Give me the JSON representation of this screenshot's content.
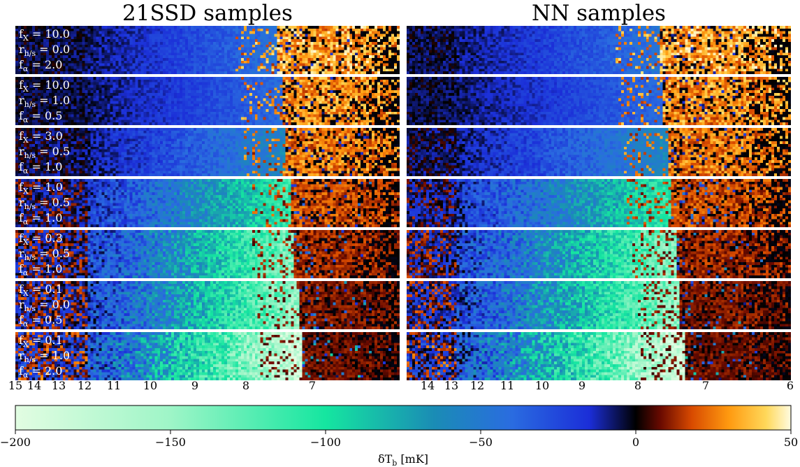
{
  "chart_data": {
    "type": "heatmap",
    "panels": [
      {
        "title": "21SSD samples",
        "x_ticks": [
          "15",
          "14",
          "13",
          "12",
          "11",
          "10",
          "9",
          "8",
          "7"
        ]
      },
      {
        "title": "NN samples",
        "x_ticks": [
          "14",
          "13",
          "12",
          "11",
          "10",
          "9",
          "8",
          "7",
          "6"
        ]
      }
    ],
    "rows": [
      {
        "fx": "10.0",
        "rhs": "0.0",
        "fa": "2.0",
        "min_dTb": -45,
        "peak": 45
      },
      {
        "fx": "10.0",
        "rhs": "1.0",
        "fa": "0.5",
        "min_dTb": -40,
        "peak": 40
      },
      {
        "fx": "3.0",
        "rhs": "0.5",
        "fa": "1.0",
        "min_dTb": -60,
        "peak": 35
      },
      {
        "fx": "1.0",
        "rhs": "0.5",
        "fa": "1.0",
        "min_dTb": -110,
        "peak": 25
      },
      {
        "fx": "0.3",
        "rhs": "0.5",
        "fa": "1.0",
        "min_dTb": -140,
        "peak": 18
      },
      {
        "fx": "0.1",
        "rhs": "0.0",
        "fa": "0.5",
        "min_dTb": -150,
        "peak": 14
      },
      {
        "fx": "0.1",
        "rhs": "1.0",
        "fa": "2.0",
        "min_dTb": -190,
        "peak": 12
      }
    ],
    "param_labels": {
      "fx": "f",
      "fx_sub": "X",
      "rhs": "r",
      "rhs_sub": "h/s",
      "fa": "f",
      "fa_sub": "α"
    },
    "colorbar": {
      "label": "δT",
      "label_sub": "b",
      "label_unit": " [mK]",
      "range": [
        -200,
        50
      ],
      "ticks": [
        "−200",
        "−150",
        "−100",
        "−50",
        "0",
        "50"
      ],
      "tick_values": [
        -200,
        -150,
        -100,
        -50,
        0,
        50
      ],
      "colormap_stops": [
        {
          "v": -200,
          "color": "#e2fde2"
        },
        {
          "v": -150,
          "color": "#9ef5c7"
        },
        {
          "v": -100,
          "color": "#15e6a0"
        },
        {
          "v": -65,
          "color": "#1a8cb5"
        },
        {
          "v": -40,
          "color": "#2a6ce0"
        },
        {
          "v": -15,
          "color": "#1b2ed8"
        },
        {
          "v": 0,
          "color": "#000000"
        },
        {
          "v": 8,
          "color": "#6a0a00"
        },
        {
          "v": 18,
          "color": "#d84a00"
        },
        {
          "v": 30,
          "color": "#ff9a10"
        },
        {
          "v": 42,
          "color": "#ffd85a"
        },
        {
          "v": 50,
          "color": "#fffbe0"
        }
      ]
    }
  }
}
